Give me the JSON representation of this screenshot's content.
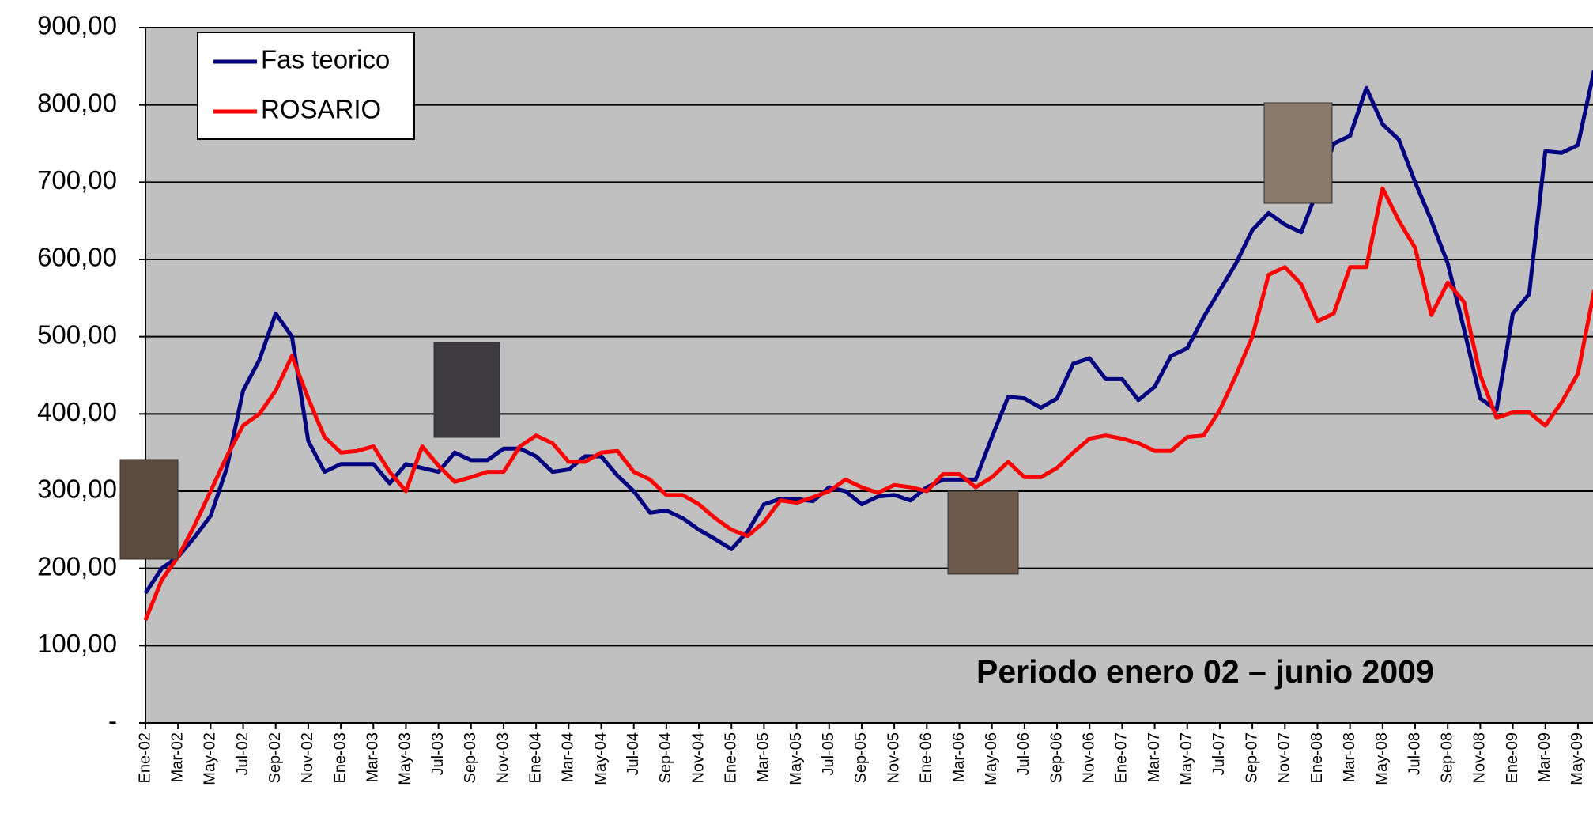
{
  "chart_data": {
    "type": "line",
    "annotation": "Periodo enero 02 – junio 2009",
    "categories": [
      "Ene-02",
      null,
      "Mar-02",
      null,
      "May-02",
      null,
      "Jul-02",
      null,
      "Sep-02",
      null,
      "Nov-02",
      null,
      "Ene-03",
      null,
      "Mar-03",
      null,
      "May-03",
      null,
      "Jul-03",
      null,
      "Sep-03",
      null,
      "Nov-03",
      null,
      "Ene-04",
      null,
      "Mar-04",
      null,
      "May-04",
      null,
      "Jul-04",
      null,
      "Sep-04",
      null,
      "Nov-04",
      null,
      "Ene-05",
      null,
      "Mar-05",
      null,
      "May-05",
      null,
      "Jul-05",
      null,
      "Sep-05",
      null,
      "Nov-05",
      null,
      "Ene-06",
      null,
      "Mar-06",
      null,
      "May-06",
      null,
      "Jul-06",
      null,
      "Sep-06",
      null,
      "Nov-06",
      null,
      "Ene-07",
      null,
      "Mar-07",
      null,
      "May-07",
      null,
      "Jul-07",
      null,
      "Sep-07",
      null,
      "Nov-07",
      null,
      "Ene-08",
      null,
      "Mar-08",
      null,
      "May-08",
      null,
      "Jul-08",
      null,
      "Sep-08",
      null,
      "Nov-08",
      null,
      "Ene-09",
      null,
      "Mar-09",
      null,
      "May-09",
      null
    ],
    "series": [
      {
        "name": "Fas teorico",
        "color": "#000080",
        "values": [
          168,
          200,
          215,
          240,
          268,
          330,
          430,
          470,
          530,
          500,
          365,
          325,
          335,
          335,
          335,
          310,
          335,
          330,
          325,
          350,
          340,
          340,
          355,
          355,
          345,
          325,
          328,
          345,
          345,
          320,
          300,
          272,
          275,
          265,
          250,
          238,
          225,
          248,
          283,
          290,
          290,
          287,
          305,
          300,
          283,
          293,
          295,
          288,
          305,
          315,
          315,
          315,
          370,
          422,
          420,
          408,
          420,
          465,
          472,
          445,
          445,
          418,
          435,
          475,
          485,
          525,
          560,
          595,
          638,
          660,
          645,
          635,
          690,
          750,
          760,
          822,
          775,
          755,
          700,
          650,
          595,
          510,
          420,
          405,
          530,
          555,
          740,
          738,
          748,
          845
        ]
      },
      {
        "name": "ROSARIO",
        "color": "#ff0000",
        "values": [
          133,
          185,
          215,
          255,
          300,
          345,
          385,
          400,
          430,
          475,
          420,
          370,
          350,
          352,
          358,
          325,
          300,
          358,
          333,
          312,
          318,
          325,
          325,
          358,
          372,
          362,
          338,
          338,
          350,
          352,
          325,
          315,
          295,
          295,
          283,
          265,
          250,
          242,
          260,
          288,
          285,
          292,
          300,
          315,
          305,
          298,
          308,
          305,
          300,
          322,
          322,
          305,
          318,
          338,
          318,
          318,
          330,
          350,
          368,
          372,
          368,
          362,
          352,
          352,
          370,
          372,
          405,
          450,
          500,
          580,
          590,
          568,
          520,
          530,
          590,
          590,
          692,
          650,
          615,
          528,
          570,
          545,
          450,
          395,
          402,
          402,
          385,
          415,
          452,
          560
        ]
      }
    ],
    "ylim": [
      0,
      900
    ],
    "yticks": [
      {
        "value": 0,
        "label": "-"
      },
      {
        "value": 100,
        "label": "100,00"
      },
      {
        "value": 200,
        "label": "200,00"
      },
      {
        "value": 300,
        "label": "300,00"
      },
      {
        "value": 400,
        "label": "400,00"
      },
      {
        "value": 500,
        "label": "500,00"
      },
      {
        "value": 600,
        "label": "600,00"
      },
      {
        "value": 700,
        "label": "700,00"
      },
      {
        "value": 800,
        "label": "800,00"
      },
      {
        "value": 900,
        "label": "900,00"
      }
    ],
    "grid": true,
    "legend": "upper left"
  }
}
